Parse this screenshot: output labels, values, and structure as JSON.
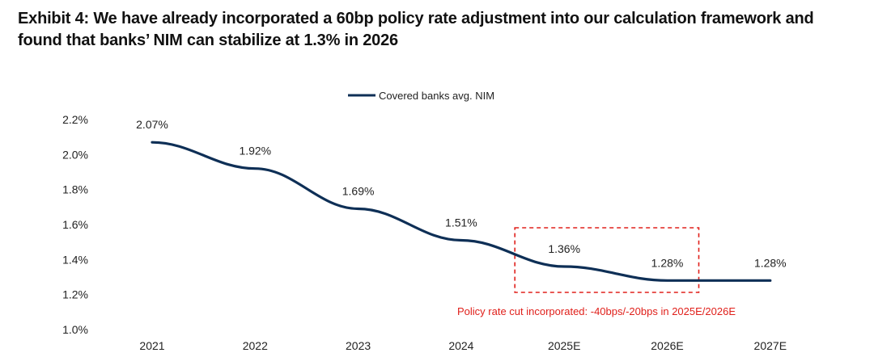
{
  "exhibit": {
    "title_line1": "Exhibit 4: We have already incorporated a 60bp policy rate adjustment into our calculation framework and",
    "title_line2": "found that banks’ NIM can stabilize at 1.3% in 2026"
  },
  "chart_data": {
    "type": "line",
    "title": "Exhibit 4: We have already incorporated a 60bp policy rate adjustment into our calculation framework and found that banks’ NIM can stabilize at 1.3% in 2026",
    "categories": [
      "2021",
      "2022",
      "2023",
      "2024",
      "2025E",
      "2026E",
      "2027E"
    ],
    "series": [
      {
        "name": "Covered banks avg. NIM",
        "values": [
          2.07,
          1.92,
          1.69,
          1.51,
          1.36,
          1.28,
          1.28
        ],
        "labels": [
          "2.07%",
          "1.92%",
          "1.69%",
          "1.51%",
          "1.36%",
          "1.28%",
          "1.28%"
        ],
        "color": "#0e2f56"
      }
    ],
    "ylim": [
      1.0,
      2.2
    ],
    "yticks": [
      1.0,
      1.2,
      1.4,
      1.6,
      1.8,
      2.0,
      2.2
    ],
    "ytick_labels": [
      "1.0%",
      "1.2%",
      "1.4%",
      "1.6%",
      "1.8%",
      "2.0%",
      "2.2%"
    ],
    "xlabel": "",
    "ylabel": "",
    "grid": false,
    "legend_position": "top-center",
    "annotation": {
      "text": "Policy rate cut incorporated: -40bps/-20bps in 2025E/2026E",
      "color": "#e0201b",
      "highlight_categories": [
        "2025E",
        "2026E"
      ]
    }
  }
}
